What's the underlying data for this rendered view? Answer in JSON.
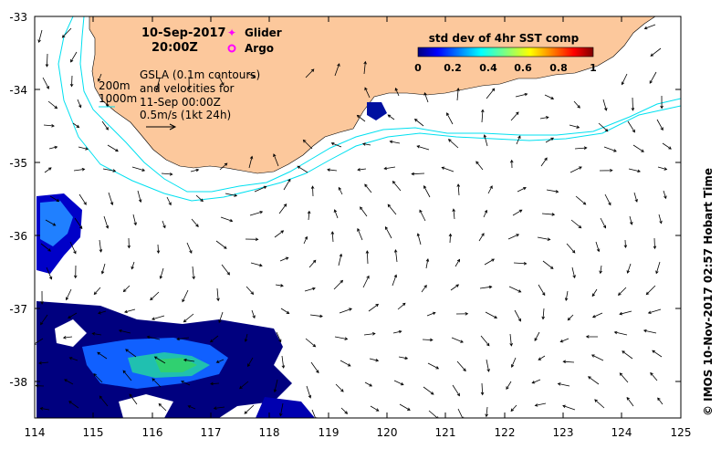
{
  "map": {
    "date_line1": "10-Sep-2017",
    "date_line2": "20:00Z",
    "legend_glider": "Glider",
    "legend_argo": "Argo",
    "gsla_lines": [
      "GSLA (0.1m contours)",
      "and velocities for",
      "11-Sep 00:00Z",
      "0.5m/s (1kt 24h)"
    ],
    "depth_200": "200m",
    "depth_1000": "1000m",
    "colorbar_title": "std dev of 4hr SST comp",
    "colorbar_ticks": [
      "0",
      "0.2",
      "0.4",
      "0.6",
      "0.8",
      "1"
    ],
    "credit": "© IMOS 10-Nov-2017 02:57 Hobart Time",
    "lat_labels": [
      "-33",
      "-34",
      "-35",
      "-36",
      "-37",
      "-38"
    ],
    "lon_labels": [
      "114",
      "115",
      "116",
      "117",
      "118",
      "119",
      "120",
      "121",
      "122",
      "123",
      "124",
      "125"
    ],
    "colors": {
      "land": "#fcc89c",
      "bathymetry": "#00e0f0",
      "glider": "#ff00ff",
      "argo": "#ff00ff",
      "sst_low": "#00007f",
      "sst_high": "#7f0000"
    }
  }
}
